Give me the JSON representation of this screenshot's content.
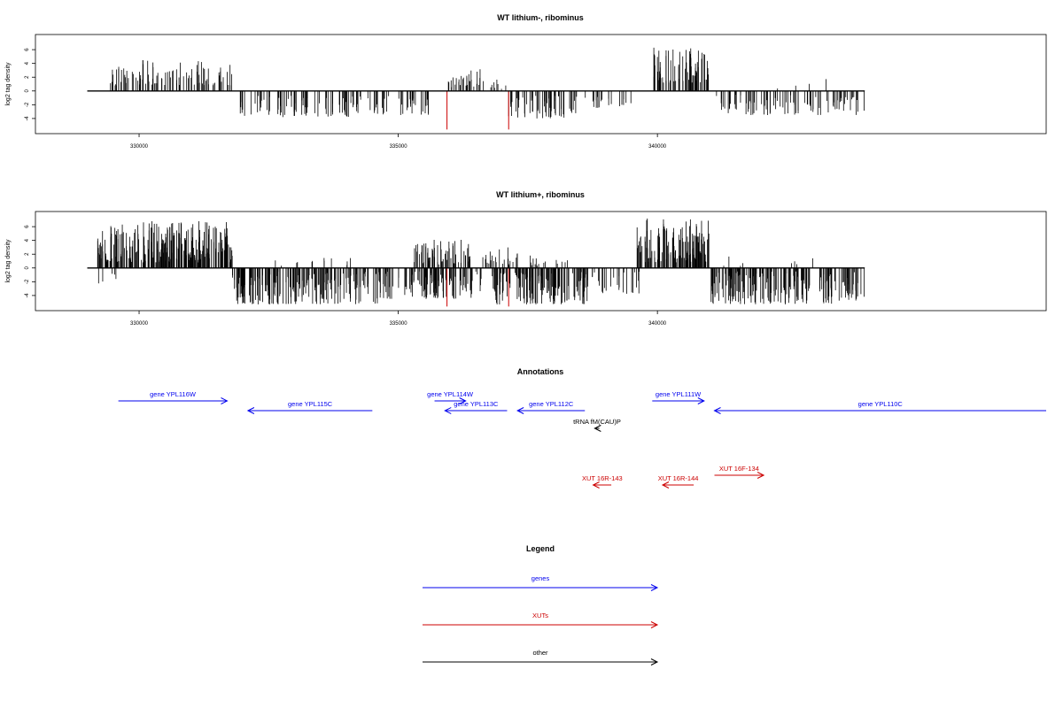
{
  "chart_data": [
    {
      "type": "bar",
      "title": "WT lithium-, ribominus",
      "ylabel": "log2 tag density",
      "xlim": [
        328000,
        347500
      ],
      "ylim": [
        -6.2,
        8.2
      ],
      "xticks": [
        330000,
        335000,
        340000
      ],
      "xtick_labels": [
        "330000",
        "335000",
        "340000"
      ],
      "yticks": [
        6,
        4,
        2,
        0,
        -2,
        -4
      ],
      "ytick_labels": [
        "6",
        "4",
        "2",
        "0",
        "-2",
        "-4"
      ],
      "baseline": [
        329000,
        344000
      ],
      "highlight_color": "#cc0000",
      "highlights": [
        {
          "x": 335940,
          "y": -5.6
        },
        {
          "x": 337130,
          "y": -5.6
        }
      ],
      "bar_color": "#000000",
      "regions": [
        {
          "from": 329400,
          "to": 331800,
          "min": 0.8,
          "max": 4.5,
          "n": 95,
          "seed": 11
        },
        {
          "from": 331950,
          "to": 334300,
          "min": -3.8,
          "max": -0.7,
          "n": 85,
          "seed": 12
        },
        {
          "from": 334400,
          "to": 335600,
          "min": -3.5,
          "max": -0.6,
          "n": 35,
          "seed": 13
        },
        {
          "from": 335850,
          "to": 336700,
          "min": 0.5,
          "max": 3.7,
          "n": 30,
          "seed": 14
        },
        {
          "from": 336750,
          "to": 337150,
          "min": 0.3,
          "max": 2.0,
          "n": 8,
          "seed": 15
        },
        {
          "from": 337100,
          "to": 338500,
          "min": -4.0,
          "max": -0.6,
          "n": 60,
          "seed": 16
        },
        {
          "from": 338600,
          "to": 339600,
          "min": -2.5,
          "max": -0.4,
          "n": 20,
          "seed": 17
        },
        {
          "from": 339900,
          "to": 341000,
          "min": 1.2,
          "max": 6.5,
          "n": 75,
          "seed": 18
        },
        {
          "from": 341100,
          "to": 344000,
          "min": -3.5,
          "max": -0.5,
          "n": 90,
          "seed": 19
        },
        {
          "from": 342000,
          "to": 343300,
          "min": 0.3,
          "max": 1.8,
          "n": 4,
          "seed": 20
        }
      ]
    },
    {
      "type": "bar",
      "title": "WT lithium+, ribominus",
      "ylabel": "log2 tag density",
      "xlim": [
        328000,
        347500
      ],
      "ylim": [
        -6.2,
        8.2
      ],
      "xticks": [
        330000,
        335000,
        340000
      ],
      "xtick_labels": [
        "330000",
        "335000",
        "340000"
      ],
      "yticks": [
        6,
        4,
        2,
        0,
        -2,
        -4
      ],
      "ytick_labels": [
        "6",
        "4",
        "2",
        "0",
        "-2",
        "-4"
      ],
      "baseline": [
        329000,
        344000
      ],
      "highlight_color": "#cc0000",
      "highlights": [
        {
          "x": 335940,
          "y": -5.6
        },
        {
          "x": 337130,
          "y": -5.6
        }
      ],
      "bar_color": "#000000",
      "regions": [
        {
          "from": 329200,
          "to": 331800,
          "min": 0.8,
          "max": 6.8,
          "n": 260,
          "seed": 21
        },
        {
          "from": 329200,
          "to": 329600,
          "min": -2.3,
          "max": -0.5,
          "n": 5,
          "seed": 22
        },
        {
          "from": 331800,
          "to": 334600,
          "min": -5.3,
          "max": -0.5,
          "n": 200,
          "seed": 23
        },
        {
          "from": 332500,
          "to": 334700,
          "min": 0.3,
          "max": 1.5,
          "n": 12,
          "seed": 24
        },
        {
          "from": 334600,
          "to": 335800,
          "min": -4.5,
          "max": -0.5,
          "n": 60,
          "seed": 25
        },
        {
          "from": 335300,
          "to": 336400,
          "min": 0.5,
          "max": 4.8,
          "n": 70,
          "seed": 26
        },
        {
          "from": 335500,
          "to": 336600,
          "min": -4.5,
          "max": -0.5,
          "n": 60,
          "seed": 27
        },
        {
          "from": 336600,
          "to": 337300,
          "min": 0.3,
          "max": 3.0,
          "n": 25,
          "seed": 28
        },
        {
          "from": 336800,
          "to": 338700,
          "min": -5.3,
          "max": -0.5,
          "n": 150,
          "seed": 29
        },
        {
          "from": 337300,
          "to": 338300,
          "min": 0.3,
          "max": 1.8,
          "n": 15,
          "seed": 30
        },
        {
          "from": 338700,
          "to": 339700,
          "min": -3.8,
          "max": -0.5,
          "n": 25,
          "seed": 31
        },
        {
          "from": 339600,
          "to": 341000,
          "min": 0.8,
          "max": 7.3,
          "n": 140,
          "seed": 32
        },
        {
          "from": 341000,
          "to": 344000,
          "min": -5.3,
          "max": -0.5,
          "n": 200,
          "seed": 33
        },
        {
          "from": 341200,
          "to": 343000,
          "min": 0.3,
          "max": 1.8,
          "n": 8,
          "seed": 34
        }
      ]
    }
  ],
  "annotations": {
    "title": "Annotations",
    "items": [
      {
        "label": "gene YPL116W",
        "color": "#0000ee",
        "start": 329600,
        "end": 331700,
        "row": 1
      },
      {
        "label": "gene YPL115C",
        "color": "#0000ee",
        "start": 334500,
        "end": 332100,
        "row": 2
      },
      {
        "label": "gene YPL114W",
        "color": "#0000ee",
        "start": 335700,
        "end": 336300,
        "row": 1
      },
      {
        "label": "gene YPL113C",
        "color": "#0000ee",
        "start": 337100,
        "end": 335900,
        "row": 2
      },
      {
        "label": "gene YPL112C",
        "color": "#0000ee",
        "start": 338600,
        "end": 337300,
        "row": 2
      },
      {
        "label": "gene YPL111W",
        "color": "#0000ee",
        "start": 339900,
        "end": 340900,
        "row": 1
      },
      {
        "label": "gene YPL110C",
        "color": "#0000ee",
        "start": 347500,
        "end": 341100,
        "row": 2
      },
      {
        "label": "tRNA fM(CAU)P",
        "color": "#000000",
        "start": 338880,
        "end": 338790,
        "row": 3
      },
      {
        "label": "XUT 16R-143",
        "color": "#cc0000",
        "start": 339110,
        "end": 338760,
        "row": 5
      },
      {
        "label": "XUT 16R-144",
        "color": "#cc0000",
        "start": 340700,
        "end": 340100,
        "row": 5
      },
      {
        "label": "XUT 16F-134",
        "color": "#cc0000",
        "start": 341100,
        "end": 342050,
        "row": 4
      }
    ]
  },
  "legend": {
    "title": "Legend",
    "entries": [
      {
        "label": "genes",
        "color": "#0000ee"
      },
      {
        "label": "XUTs",
        "color": "#cc0000"
      },
      {
        "label": "other",
        "color": "#000000"
      }
    ]
  }
}
